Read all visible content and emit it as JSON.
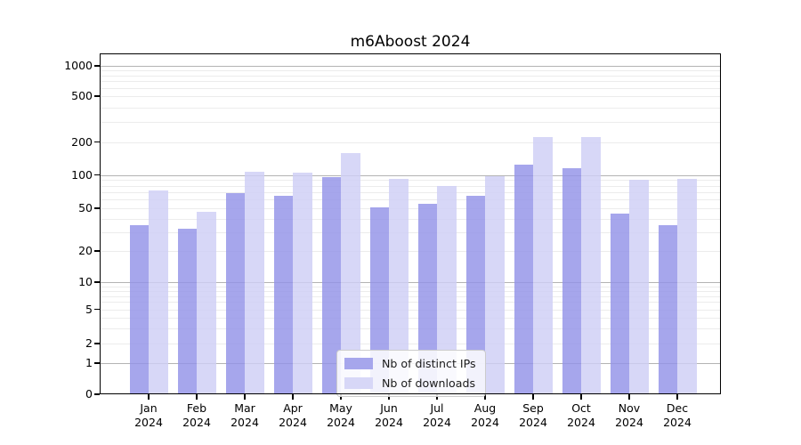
{
  "chart_data": {
    "type": "bar",
    "title": "m6Aboost 2024",
    "categories": [
      "Jan 2024",
      "Feb 2024",
      "Mar 2024",
      "Apr 2024",
      "May 2024",
      "Jun 2024",
      "Jul 2024",
      "Aug 2024",
      "Sep 2024",
      "Oct 2024",
      "Nov 2024",
      "Dec 2024"
    ],
    "series": [
      {
        "name": "Nb of distinct IPs",
        "color": "#a6a6ec",
        "values": [
          35,
          32,
          68,
          65,
          95,
          51,
          55,
          65,
          124,
          115,
          45,
          35
        ]
      },
      {
        "name": "Nb of downloads",
        "color": "#d7d7f7",
        "values": [
          72,
          46,
          106,
          105,
          158,
          92,
          80,
          97,
          220,
          220,
          90,
          92
        ]
      }
    ],
    "yscale": "log (0 at baseline)",
    "yticks": [
      0,
      1,
      2,
      5,
      10,
      20,
      50,
      100,
      200,
      500,
      1000
    ],
    "ylim": [
      0,
      1400
    ],
    "grid": true,
    "legend_position": "lower center"
  },
  "colors": {
    "major_grid": "#b3b3b3",
    "minor_grid": "#ececec",
    "axis": "#000000",
    "background": "#ffffff"
  }
}
